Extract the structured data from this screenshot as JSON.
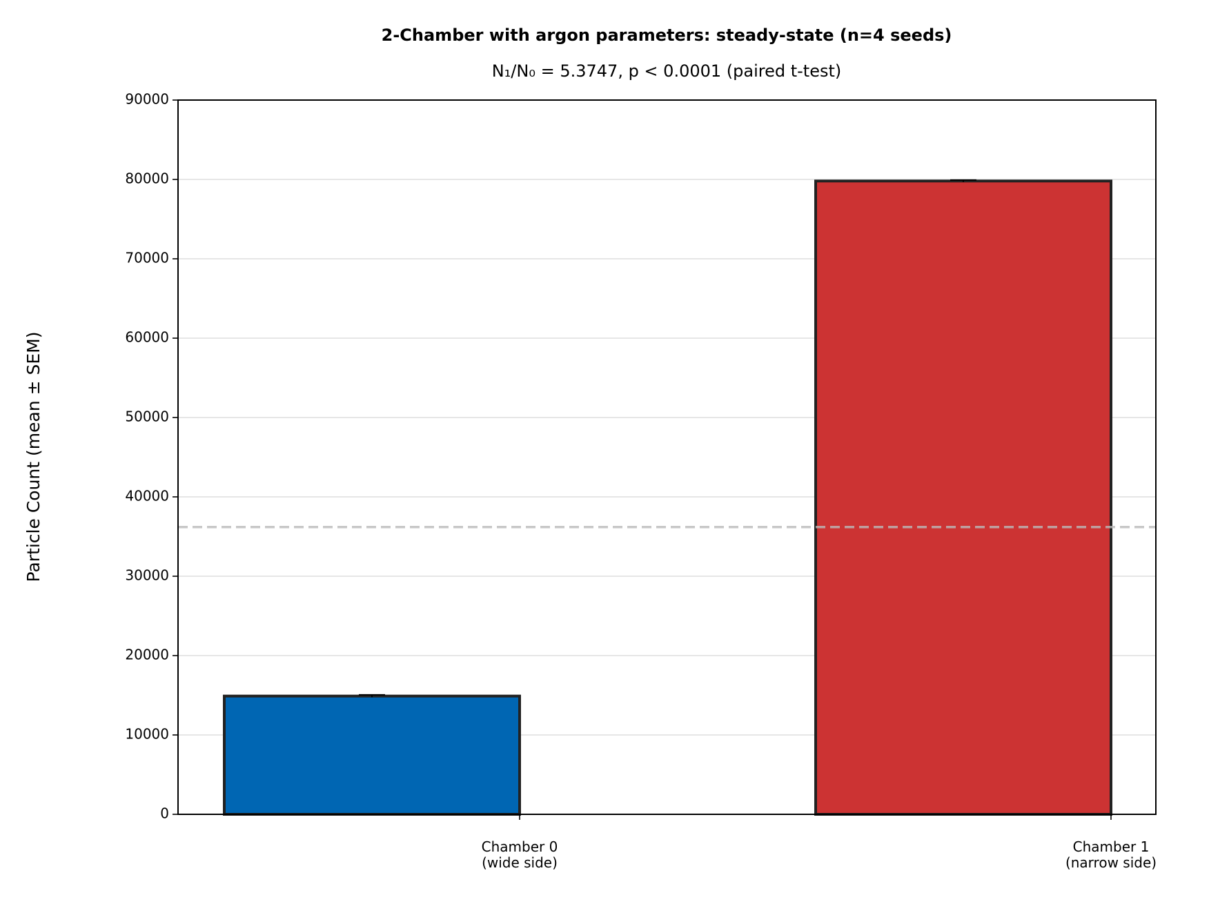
{
  "chart_data": {
    "type": "bar",
    "title": "2-Chamber with argon parameters: steady-state (n=4 seeds)",
    "subtitle": "N₁/N₀ = 5.3747, p < 0.0001 (paired t-test)",
    "y_label": "Particle Count (mean ± SEM)",
    "categories": [
      "Chamber 0\n(wide side)",
      "Chamber 1\n(narrow side)"
    ],
    "values": [
      14900,
      79800
    ],
    "errors": [
      150,
      120
    ],
    "colors": [
      "#0066b3",
      "#cc3333"
    ],
    "reference_line": 36200,
    "ylim": [
      0,
      90000
    ],
    "yticks": [
      0,
      10000,
      20000,
      30000,
      40000,
      50000,
      60000,
      70000,
      80000,
      90000
    ],
    "grid": true
  }
}
